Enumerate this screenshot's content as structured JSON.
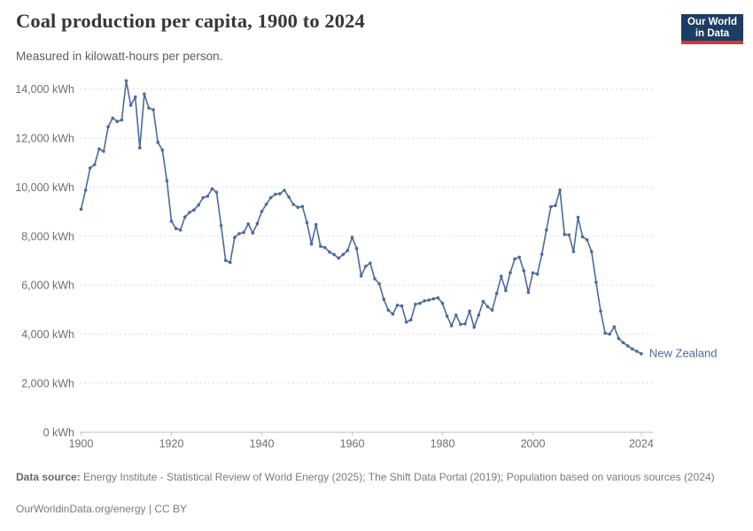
{
  "header": {
    "title": "Coal production per capita, 1900 to 2024",
    "subtitle": "Measured in kilowatt-hours per person.",
    "logo": {
      "line1": "Our World",
      "line2": "in Data"
    }
  },
  "colors": {
    "series_blue": "#4c6a9c",
    "grid": "#dcdcdc",
    "axis_line": "#c4c4c4",
    "axis_text": "#6e6e6e",
    "logo_bg": "#1d3d63",
    "logo_red": "#d7382e"
  },
  "chart_data": {
    "type": "line",
    "title": "Coal production per capita, 1900 to 2024",
    "unit": "kilowatt-hours per person",
    "xlabel": "",
    "ylabel": "",
    "xlim": [
      1900,
      2024
    ],
    "ylim": [
      0,
      14000
    ],
    "grid": "dashed-horizontal",
    "legend_position": "end-of-line-label",
    "x_ticks": [
      1900,
      1920,
      1940,
      1960,
      1980,
      2000,
      2024
    ],
    "y_ticks": [
      {
        "value": 0,
        "label": "0 kWh"
      },
      {
        "value": 2000,
        "label": "2,000 kWh"
      },
      {
        "value": 4000,
        "label": "4,000 kWh"
      },
      {
        "value": 6000,
        "label": "6,000 kWh"
      },
      {
        "value": 8000,
        "label": "8,000 kWh"
      },
      {
        "value": 10000,
        "label": "10,000 kWh"
      },
      {
        "value": 12000,
        "label": "12,000 kWh"
      },
      {
        "value": 14000,
        "label": "14,000 kWh"
      }
    ],
    "series": [
      {
        "name": "New Zealand",
        "color": "#4c6a9c",
        "x_start": 1900,
        "x_end": 2024,
        "values": [
          9100,
          9870,
          10780,
          10920,
          11560,
          11460,
          12460,
          12820,
          12680,
          12740,
          14340,
          13340,
          13680,
          11600,
          13800,
          13230,
          13160,
          11830,
          11510,
          10260,
          8610,
          8310,
          8250,
          8780,
          8970,
          9070,
          9270,
          9570,
          9630,
          9930,
          9790,
          8430,
          7010,
          6925,
          7950,
          8100,
          8150,
          8500,
          8130,
          8510,
          9010,
          9300,
          9570,
          9710,
          9730,
          9870,
          9595,
          9295,
          9175,
          9210,
          8550,
          7680,
          8470,
          7590,
          7530,
          7350,
          7250,
          7100,
          7250,
          7410,
          7950,
          7500,
          6380,
          6770,
          6900,
          6260,
          6060,
          5420,
          4980,
          4820,
          5180,
          5150,
          4490,
          4580,
          5220,
          5260,
          5360,
          5390,
          5440,
          5480,
          5260,
          4740,
          4340,
          4780,
          4400,
          4420,
          4940,
          4280,
          4780,
          5330,
          5120,
          4980,
          5660,
          6360,
          5780,
          6510,
          7070,
          7140,
          6590,
          5700,
          6500,
          6450,
          7260,
          8250,
          9200,
          9250,
          9880,
          8070,
          8050,
          7370,
          8770,
          7970,
          7850,
          7370,
          6120,
          4940,
          4040,
          4000,
          4300,
          3820,
          3650,
          3520,
          3400,
          3300,
          3200
        ]
      }
    ]
  },
  "footer": {
    "source_label": "Data source:",
    "source_text": " Energy Institute - Statistical Review of World Energy (2025); The Shift Data Portal (2019); Population based on various sources (2024)",
    "site_link": "OurWorldinData.org/energy",
    "divider": " | ",
    "license": "CC BY"
  }
}
